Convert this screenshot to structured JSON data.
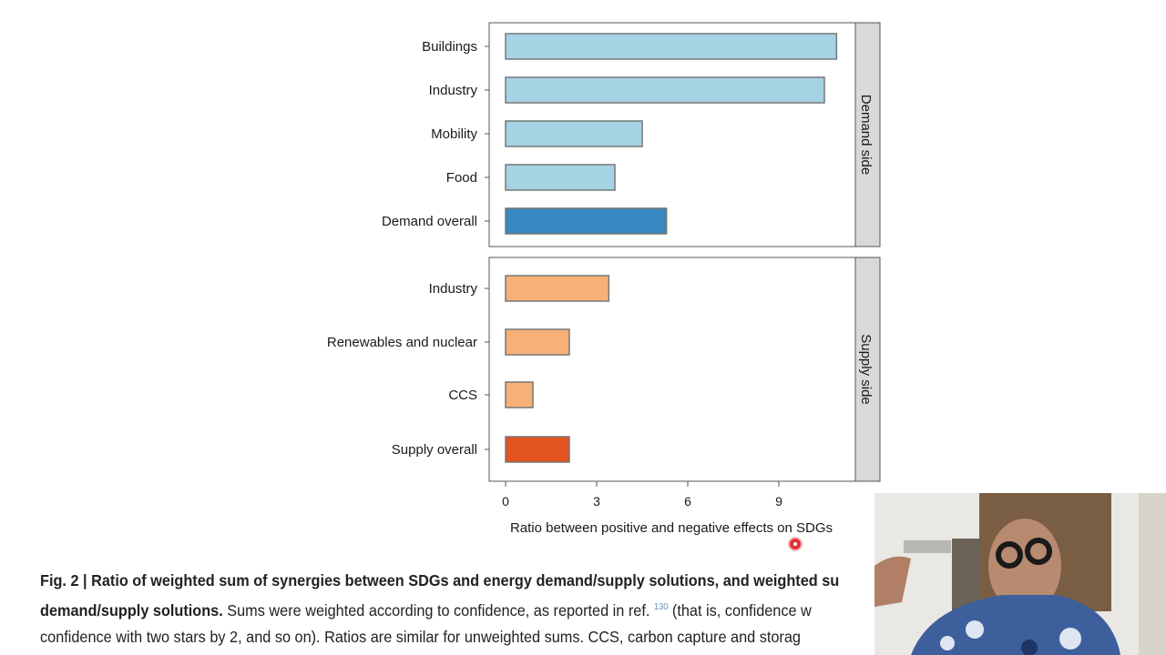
{
  "chart_data": {
    "type": "bar",
    "orientation": "horizontal",
    "xlabel": "Ratio between positive and negative effects on SDGs",
    "xlim": [
      0,
      11.4
    ],
    "xticks": [
      "0",
      "3",
      "6",
      "9"
    ],
    "grid": false,
    "panels": [
      {
        "strip_label": "Demand side",
        "categories": [
          "Buildings",
          "Industry",
          "Mobility",
          "Food",
          "Demand overall"
        ],
        "values": [
          10.9,
          10.5,
          4.5,
          3.6,
          5.3
        ],
        "colors": [
          "#a6d3e3",
          "#a6d3e3",
          "#a6d3e3",
          "#a6d3e3",
          "#3787c0"
        ]
      },
      {
        "strip_label": "Supply side",
        "categories": [
          "Industry",
          "Renewables and nuclear",
          "CCS",
          "Supply overall"
        ],
        "values": [
          3.4,
          2.1,
          0.9,
          2.1
        ],
        "colors": [
          "#f7b176",
          "#f7b176",
          "#f7b176",
          "#e2531f"
        ]
      }
    ]
  },
  "caption": {
    "line1_bold": "Fig. 2 | Ratio of weighted sum of synergies between SDGs and energy demand/supply solutions, and weighted su",
    "line2_bold": "demand/supply solutions.",
    "line2_text": " Sums were weighted according to confidence, as reported in ref. ",
    "line2_ref": "130",
    "line2_tail": " (that is, confidence w",
    "line3_text": "confidence with two stars by 2, and so on). Ratios are similar for unweighted sums. CCS, carbon capture and storag"
  }
}
